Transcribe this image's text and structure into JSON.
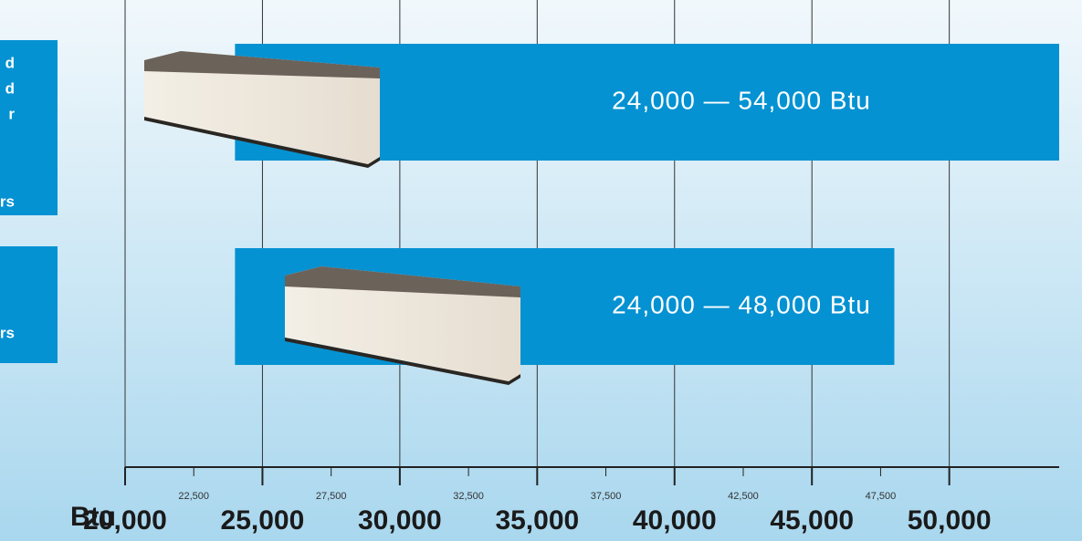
{
  "chart_data": {
    "type": "range-bar",
    "axis_label": "Btu",
    "side_labels": [
      [
        "d",
        "d",
        "r",
        "rs"
      ],
      [
        "rs"
      ]
    ],
    "starts": [
      24000,
      24000
    ],
    "ends": [
      54000,
      48000
    ],
    "value_labels": [
      "24,000 — 54,000 Btu",
      "24,000 — 48,000 Btu"
    ],
    "color": "#0592d2",
    "xlim": [
      20000,
      54000
    ],
    "xticks": [
      {
        "value": 20000,
        "label": "20,000"
      },
      {
        "value": 25000,
        "label": "25,000"
      },
      {
        "value": 30000,
        "label": "30,000"
      },
      {
        "value": 35000,
        "label": "35,000"
      },
      {
        "value": 40000,
        "label": "40,000"
      },
      {
        "value": 45000,
        "label": "45,000"
      },
      {
        "value": 50000,
        "label": "50,000"
      }
    ],
    "minor_xticks": [
      {
        "value": 22500,
        "label": "22,500"
      },
      {
        "value": 27500,
        "label": "27,500"
      },
      {
        "value": 32500,
        "label": "32,500"
      },
      {
        "value": 37500,
        "label": "37,500"
      },
      {
        "value": 42500,
        "label": "42,500"
      },
      {
        "value": 47500,
        "label": "47,500"
      }
    ],
    "grid": true
  }
}
